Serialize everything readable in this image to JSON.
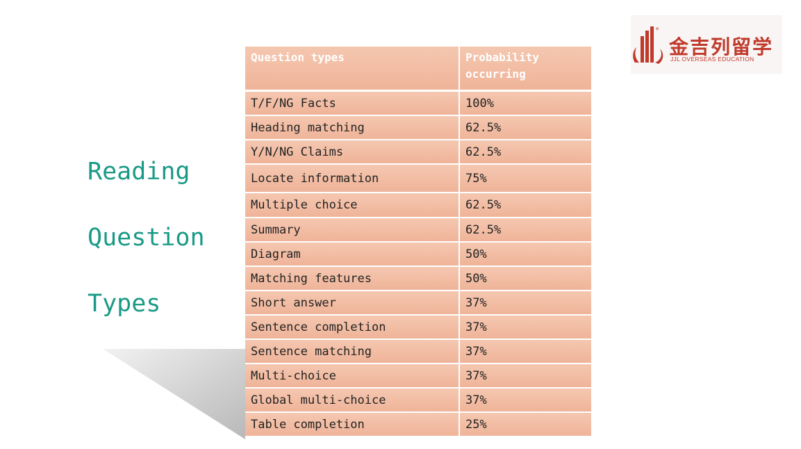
{
  "title": {
    "line1": "Reading",
    "line2": "Question",
    "line3": "Types"
  },
  "logo": {
    "chinese": "金吉列留学",
    "english": "JJL OVERSEAS EDUCATION",
    "mark": "®"
  },
  "table": {
    "headers": {
      "col1": "Question types",
      "col2": "Probability occurring"
    },
    "rows": [
      {
        "type": "T/F/NG Facts",
        "probability": "100%"
      },
      {
        "type": "Heading matching",
        "probability": "62.5%"
      },
      {
        "type": "Y/N/NG Claims",
        "probability": "62.5%"
      },
      {
        "type": "Locate information",
        "probability": "75%"
      },
      {
        "type": "Multiple choice",
        "probability": "62.5%"
      },
      {
        "type": "Summary",
        "probability": "62.5%"
      },
      {
        "type": "Diagram",
        "probability": "50%"
      },
      {
        "type": "Matching features",
        "probability": "50%"
      },
      {
        "type": "Short answer",
        "probability": "37%"
      },
      {
        "type": "Sentence completion",
        "probability": "37%"
      },
      {
        "type": "Sentence matching",
        "probability": "37%"
      },
      {
        "type": "Multi-choice",
        "probability": "37%"
      },
      {
        "type": "Global multi-choice",
        "probability": "37%"
      },
      {
        "type": "Table completion",
        "probability": "25%"
      }
    ]
  },
  "colors": {
    "title": "#1a9a86",
    "cell": "#f2bda4",
    "logo": "#c0392b"
  }
}
